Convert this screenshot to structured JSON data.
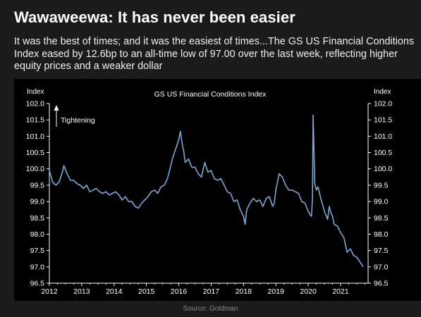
{
  "header": {
    "title": "Wawaweewa: It has never been easier",
    "subtitle": "It was the best of times; and it was the easiest of times...The GS US Financial Conditions Index eased by 12.6bp to an all-time low of 97.00 over the last week, reflecting higher equity prices and a weaker dollar"
  },
  "footer": {
    "source": "Source: Goldman"
  },
  "colors": {
    "background": "#1b1b1b",
    "plot_background": "#000000",
    "line": "#7ea7d8",
    "text": "#ffffff"
  },
  "chart_data": {
    "type": "line",
    "title": "GS US Financial Conditions Index",
    "ylabel": "Index",
    "y2label": "Index",
    "xlabel": "",
    "annotation": "Tightening",
    "xlim": [
      2012.0,
      2021.85
    ],
    "ylim": [
      96.5,
      102.0
    ],
    "yticks": [
      "102.0",
      "101.5",
      "101.0",
      "100.5",
      "100.0",
      "99.5",
      "99.0",
      "98.5",
      "98.0",
      "97.5",
      "97.0",
      "96.5"
    ],
    "xticks": [
      "2012",
      "2013",
      "2014",
      "2015",
      "2016",
      "2017",
      "2018",
      "2019",
      "2020",
      "2021"
    ],
    "grid": false,
    "series": [
      {
        "x": [
          2012.0,
          2012.1,
          2012.2,
          2012.3,
          2012.4,
          2012.45,
          2012.55,
          2012.65,
          2012.75,
          2012.85,
          2012.95,
          2013.05,
          2013.15,
          2013.25,
          2013.35,
          2013.45,
          2013.55,
          2013.65,
          2013.75,
          2013.85,
          2013.95,
          2014.05,
          2014.15,
          2014.25,
          2014.35,
          2014.45,
          2014.55,
          2014.65,
          2014.75,
          2014.85,
          2014.95,
          2015.05,
          2015.15,
          2015.25,
          2015.35,
          2015.45,
          2015.55,
          2015.65,
          2015.7,
          2015.8,
          2015.9,
          2016.0,
          2016.05,
          2016.1,
          2016.15,
          2016.2,
          2016.3,
          2016.4,
          2016.5,
          2016.6,
          2016.7,
          2016.8,
          2016.9,
          2017.0,
          2017.1,
          2017.2,
          2017.3,
          2017.4,
          2017.5,
          2017.6,
          2017.7,
          2017.8,
          2017.9,
          2018.0,
          2018.05,
          2018.1,
          2018.2,
          2018.3,
          2018.4,
          2018.5,
          2018.6,
          2018.7,
          2018.8,
          2018.9,
          2018.95,
          2019.0,
          2019.1,
          2019.2,
          2019.3,
          2019.4,
          2019.5,
          2019.6,
          2019.7,
          2019.8,
          2019.9,
          2020.0,
          2020.05,
          2020.1,
          2020.13,
          2020.15,
          2020.18,
          2020.2,
          2020.25,
          2020.3,
          2020.4,
          2020.5,
          2020.6,
          2020.65,
          2020.7,
          2020.75,
          2020.8,
          2020.9,
          2021.0,
          2021.1,
          2021.2,
          2021.3,
          2021.4,
          2021.5,
          2021.6,
          2021.7
        ],
        "y": [
          99.95,
          99.6,
          99.5,
          99.6,
          99.9,
          100.1,
          99.85,
          99.65,
          99.65,
          99.55,
          99.5,
          99.4,
          99.5,
          99.3,
          99.35,
          99.4,
          99.3,
          99.25,
          99.3,
          99.2,
          99.25,
          99.3,
          99.2,
          99.05,
          99.15,
          99.0,
          99.0,
          98.85,
          98.8,
          98.95,
          99.05,
          99.15,
          99.3,
          99.35,
          99.25,
          99.45,
          99.5,
          99.7,
          99.9,
          100.3,
          100.6,
          100.9,
          101.15,
          100.8,
          100.55,
          100.2,
          100.3,
          100.05,
          100.05,
          99.85,
          99.75,
          100.2,
          99.9,
          99.95,
          99.7,
          99.65,
          99.7,
          99.5,
          99.3,
          99.25,
          99.0,
          99.05,
          98.75,
          98.55,
          98.3,
          98.75,
          98.95,
          99.1,
          99.0,
          99.05,
          98.85,
          99.1,
          99.15,
          98.85,
          98.95,
          99.35,
          99.85,
          99.75,
          99.5,
          99.35,
          99.35,
          99.3,
          99.25,
          99.0,
          98.95,
          98.7,
          98.6,
          98.55,
          99.1,
          101.65,
          100.45,
          99.55,
          99.35,
          99.45,
          99.05,
          98.7,
          98.45,
          98.85,
          98.65,
          98.55,
          98.3,
          98.25,
          98.05,
          97.9,
          97.45,
          97.55,
          97.35,
          97.3,
          97.15,
          97.0
        ]
      }
    ]
  }
}
